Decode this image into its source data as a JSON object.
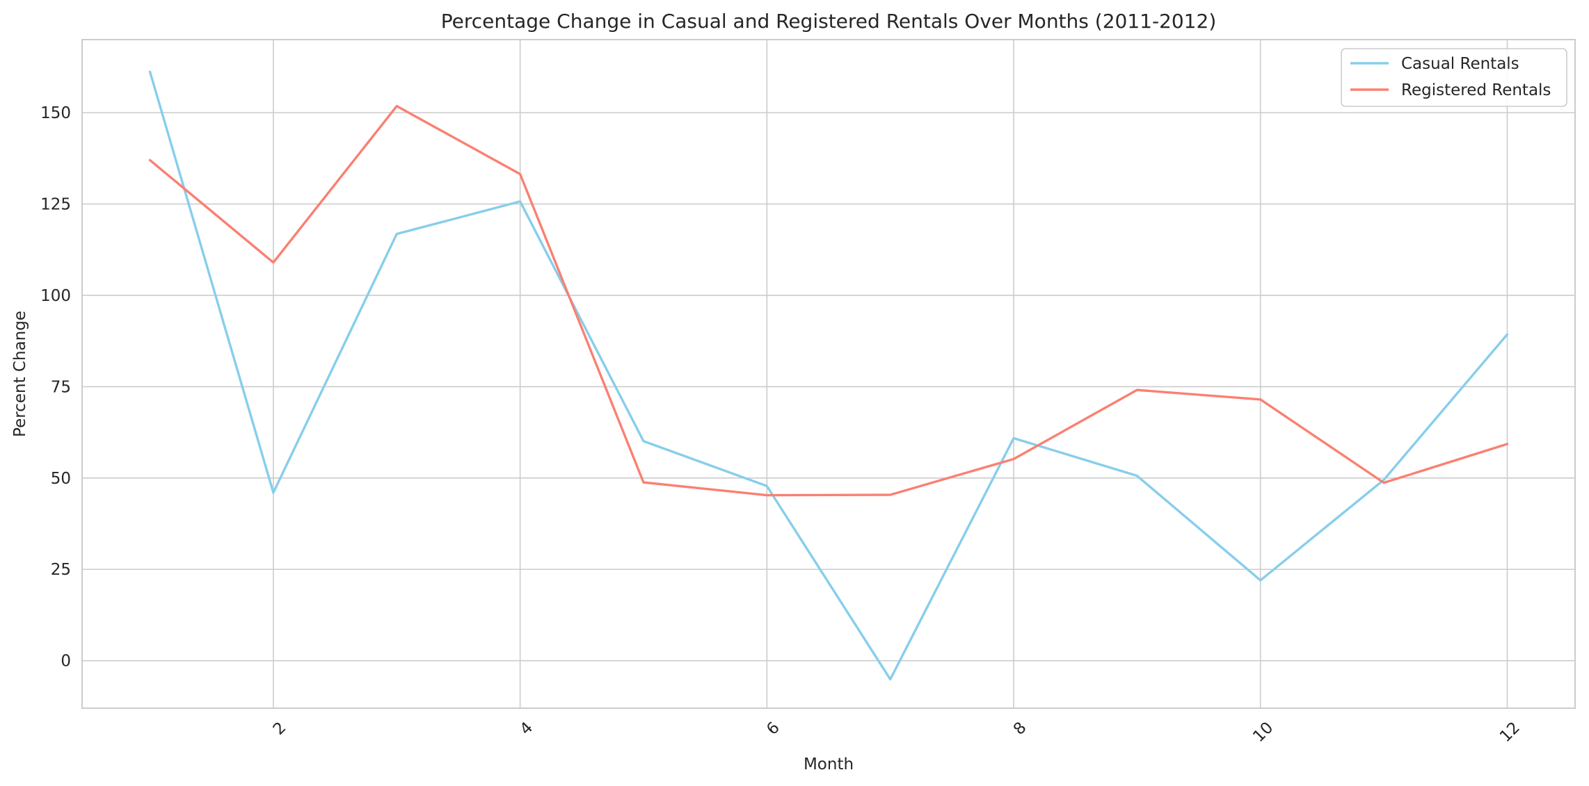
{
  "chart_data": {
    "type": "line",
    "title": "Percentage Change in Casual and Registered Rentals Over Months (2011-2012)",
    "xlabel": "Month",
    "ylabel": "Percent Change",
    "x": [
      1,
      2,
      3,
      4,
      5,
      6,
      7,
      8,
      9,
      10,
      11,
      12
    ],
    "xlim": [
      0.45,
      12.55
    ],
    "ylim": [
      -13,
      170
    ],
    "x_ticks": [
      2,
      4,
      6,
      8,
      10,
      12
    ],
    "x_tick_rotation": 45,
    "y_ticks": [
      0,
      25,
      50,
      75,
      100,
      125,
      150
    ],
    "grid": true,
    "legend_position": "top-right",
    "series": [
      {
        "name": "Casual Rentals",
        "color": "#87ceeb",
        "values": [
          161.2,
          46.0,
          116.8,
          125.7,
          60.1,
          47.8,
          -5.1,
          60.9,
          50.6,
          22.0,
          49.5,
          89.3
        ]
      },
      {
        "name": "Registered Rentals",
        "color": "#fa8072",
        "values": [
          137.0,
          109.0,
          151.8,
          133.2,
          48.8,
          45.3,
          45.4,
          55.2,
          74.1,
          71.5,
          48.7,
          59.3
        ]
      }
    ]
  }
}
